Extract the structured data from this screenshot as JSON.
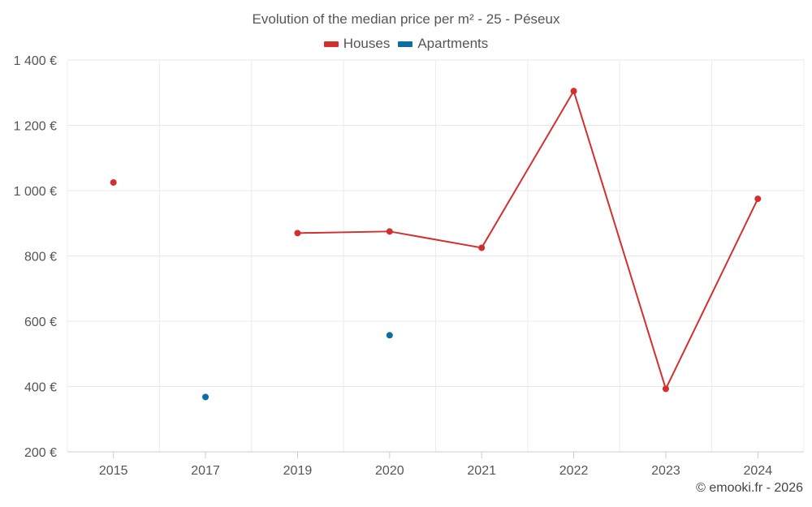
{
  "chart_data": {
    "type": "line",
    "title": "Evolution of the median price per m² - 25 - Péseux",
    "categories": [
      "2015",
      "2017",
      "2019",
      "2020",
      "2021",
      "2022",
      "2023",
      "2024"
    ],
    "y_tick_labels": [
      "200 €",
      "400 €",
      "600 €",
      "800 €",
      "1 000 €",
      "1 200 €",
      "1 400 €"
    ],
    "y_ticks": [
      200,
      400,
      600,
      800,
      1000,
      1200,
      1400
    ],
    "ylim": [
      200,
      1400
    ],
    "grid": true,
    "legend_position": "top-center",
    "series": [
      {
        "name": "Houses",
        "color": "#d32f2f",
        "values": [
          1025,
          null,
          870,
          875,
          825,
          1305,
          393,
          975
        ]
      },
      {
        "name": "Apartments",
        "color": "#0b6fa4",
        "values": [
          null,
          368,
          null,
          557,
          null,
          null,
          null,
          null
        ]
      }
    ]
  },
  "credit": "© emooki.fr - 2026"
}
